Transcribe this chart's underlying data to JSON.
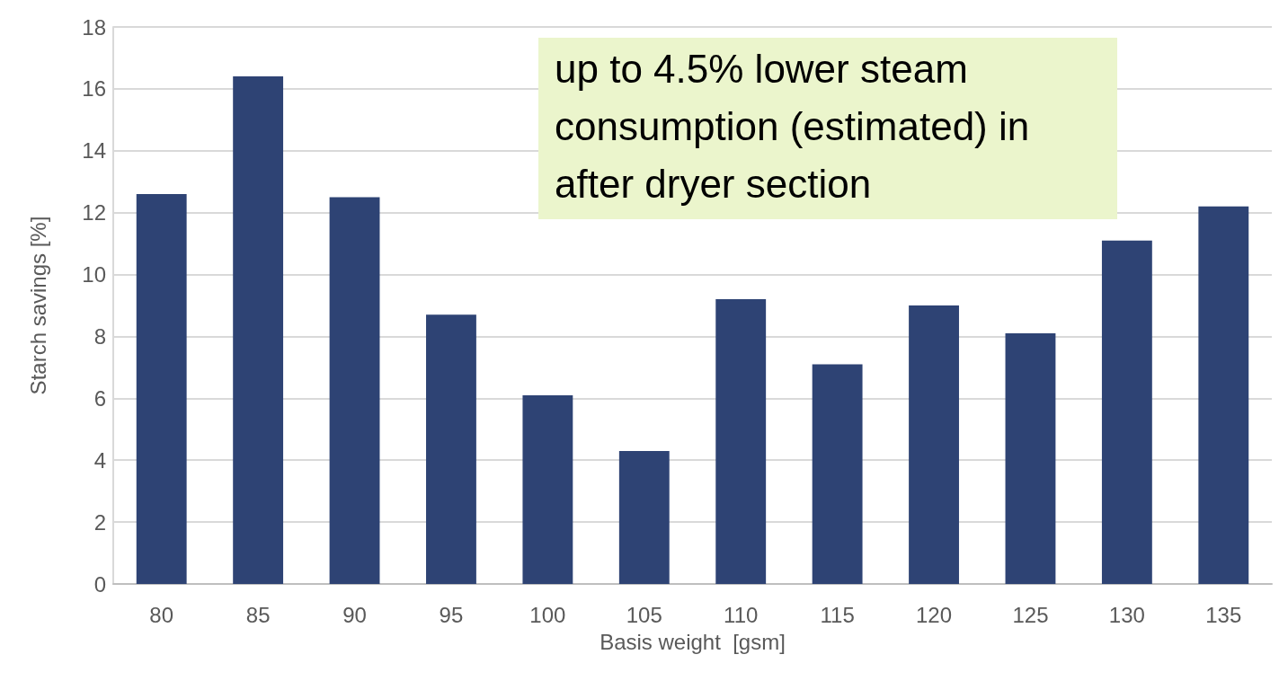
{
  "chart_data": {
    "type": "bar",
    "xlabel": "Basis weight  [gsm]",
    "ylabel": "Starch savings [%]",
    "categories": [
      "80",
      "85",
      "90",
      "95",
      "100",
      "105",
      "110",
      "115",
      "120",
      "125",
      "130",
      "135"
    ],
    "values": [
      12.6,
      16.4,
      12.5,
      8.7,
      6.1,
      4.3,
      9.2,
      7.1,
      9.0,
      8.1,
      11.1,
      12.2
    ],
    "color": "#2e4374",
    "ylim": [
      0,
      18
    ],
    "yticks": [
      0,
      2,
      4,
      6,
      8,
      10,
      12,
      14,
      16,
      18
    ],
    "grid": "y",
    "annotations": [
      "up to 4.5% lower steam consumption (estimated) in after dryer section"
    ]
  }
}
